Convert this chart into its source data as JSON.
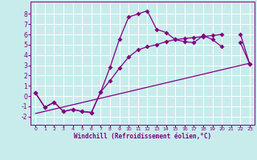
{
  "xlabel": "Windchill (Refroidissement éolien,°C)",
  "bg_color": "#c8ecec",
  "line_color": "#800080",
  "grid_color": "#ffffff",
  "xlim": [
    -0.5,
    23.5
  ],
  "ylim": [
    -2.8,
    9.2
  ],
  "yticks": [
    -2,
    -1,
    0,
    1,
    2,
    3,
    4,
    5,
    6,
    7,
    8
  ],
  "xticks": [
    0,
    1,
    2,
    3,
    4,
    5,
    6,
    7,
    8,
    9,
    10,
    11,
    12,
    13,
    14,
    15,
    16,
    17,
    18,
    19,
    20,
    21,
    22,
    23
  ],
  "line1_y": [
    0.3,
    -1.1,
    -0.6,
    -1.5,
    -1.3,
    -1.5,
    -1.6,
    0.4,
    2.8,
    5.5,
    7.7,
    8.0,
    8.3,
    6.5,
    6.2,
    5.5,
    5.3,
    5.2,
    5.9,
    5.5,
    4.8,
    null,
    5.2,
    3.1
  ],
  "line2_y": [
    0.3,
    -1.1,
    -0.6,
    -1.5,
    -1.3,
    -1.5,
    -1.6,
    0.4,
    1.5,
    2.7,
    3.8,
    4.5,
    4.8,
    5.0,
    5.3,
    5.5,
    5.6,
    5.7,
    5.8,
    5.9,
    6.0,
    null,
    6.0,
    3.1
  ],
  "line3_y": [
    -1.7,
    3.2
  ],
  "line3_x": [
    0,
    23
  ],
  "marker_size": 3.0,
  "lw": 0.9
}
